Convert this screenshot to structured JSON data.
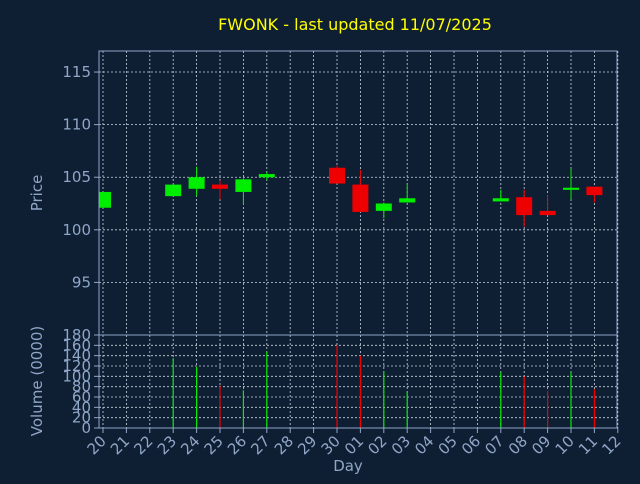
{
  "chart_data": [
    {
      "type": "candlestick",
      "title": "FWONK - last updated 11/07/2025",
      "ylabel": "Price",
      "ylim": [
        90,
        117
      ],
      "yticks": [
        95,
        100,
        105,
        110,
        115
      ],
      "grid": true,
      "colors": {
        "up": "#00ee00",
        "down": "#ee0000"
      },
      "x": [
        "20",
        "21",
        "22",
        "23",
        "24",
        "25",
        "26",
        "27",
        "28",
        "29",
        "30",
        "01",
        "02",
        "03",
        "04",
        "05",
        "06",
        "07",
        "08",
        "09",
        "10",
        "11",
        "12"
      ],
      "candles": [
        {
          "x": "20",
          "open": 102.1,
          "high": 103.6,
          "low": 102.1,
          "close": 103.6
        },
        {
          "x": "23",
          "open": 103.2,
          "high": 104.3,
          "low": 103.2,
          "close": 104.3
        },
        {
          "x": "24",
          "open": 103.9,
          "high": 106.0,
          "low": 103.2,
          "close": 105.0
        },
        {
          "x": "25",
          "open": 104.3,
          "high": 104.7,
          "low": 102.9,
          "close": 103.9
        },
        {
          "x": "26",
          "open": 103.6,
          "high": 104.9,
          "low": 102.4,
          "close": 104.8
        },
        {
          "x": "27",
          "open": 105.0,
          "high": 105.5,
          "low": 104.7,
          "close": 105.3
        },
        {
          "x": "30",
          "open": 105.9,
          "high": 106.1,
          "low": 104.4,
          "close": 104.4
        },
        {
          "x": "01",
          "open": 104.3,
          "high": 105.7,
          "low": 101.7,
          "close": 101.7
        },
        {
          "x": "02",
          "open": 101.8,
          "high": 102.6,
          "low": 101.1,
          "close": 102.5
        },
        {
          "x": "03",
          "open": 102.6,
          "high": 104.3,
          "low": 102.6,
          "close": 103.0
        },
        {
          "x": "07",
          "open": 102.7,
          "high": 103.8,
          "low": 102.7,
          "close": 103.0
        },
        {
          "x": "08",
          "open": 103.1,
          "high": 103.8,
          "low": 100.3,
          "close": 101.4
        },
        {
          "x": "09",
          "open": 101.8,
          "high": 103.3,
          "low": 101.4,
          "close": 101.4
        },
        {
          "x": "10",
          "open": 103.8,
          "high": 105.8,
          "low": 102.9,
          "close": 104.0
        },
        {
          "x": "11",
          "open": 104.1,
          "high": 104.1,
          "low": 102.6,
          "close": 103.3
        }
      ]
    },
    {
      "type": "bar",
      "xlabel": "Day",
      "ylabel": "Volume (0000)",
      "ylim": [
        0,
        180
      ],
      "yticks": [
        0,
        20,
        40,
        60,
        80,
        100,
        120,
        140,
        160,
        180
      ],
      "grid": true,
      "x": [
        "20",
        "21",
        "22",
        "23",
        "24",
        "25",
        "26",
        "27",
        "28",
        "29",
        "30",
        "01",
        "02",
        "03",
        "04",
        "05",
        "06",
        "07",
        "08",
        "09",
        "10",
        "11",
        "12"
      ],
      "bars": [
        {
          "x": "23",
          "value": 135,
          "dir": "up"
        },
        {
          "x": "24",
          "value": 118,
          "dir": "up"
        },
        {
          "x": "25",
          "value": 82,
          "dir": "down"
        },
        {
          "x": "26",
          "value": 73,
          "dir": "up"
        },
        {
          "x": "27",
          "value": 148,
          "dir": "up"
        },
        {
          "x": "30",
          "value": 160,
          "dir": "down"
        },
        {
          "x": "01",
          "value": 140,
          "dir": "down"
        },
        {
          "x": "02",
          "value": 110,
          "dir": "up"
        },
        {
          "x": "03",
          "value": 70,
          "dir": "up"
        },
        {
          "x": "07",
          "value": 108,
          "dir": "up"
        },
        {
          "x": "08",
          "value": 100,
          "dir": "down"
        },
        {
          "x": "09",
          "value": 72,
          "dir": "down"
        },
        {
          "x": "10",
          "value": 108,
          "dir": "up"
        },
        {
          "x": "11",
          "value": 75,
          "dir": "down"
        }
      ]
    }
  ]
}
